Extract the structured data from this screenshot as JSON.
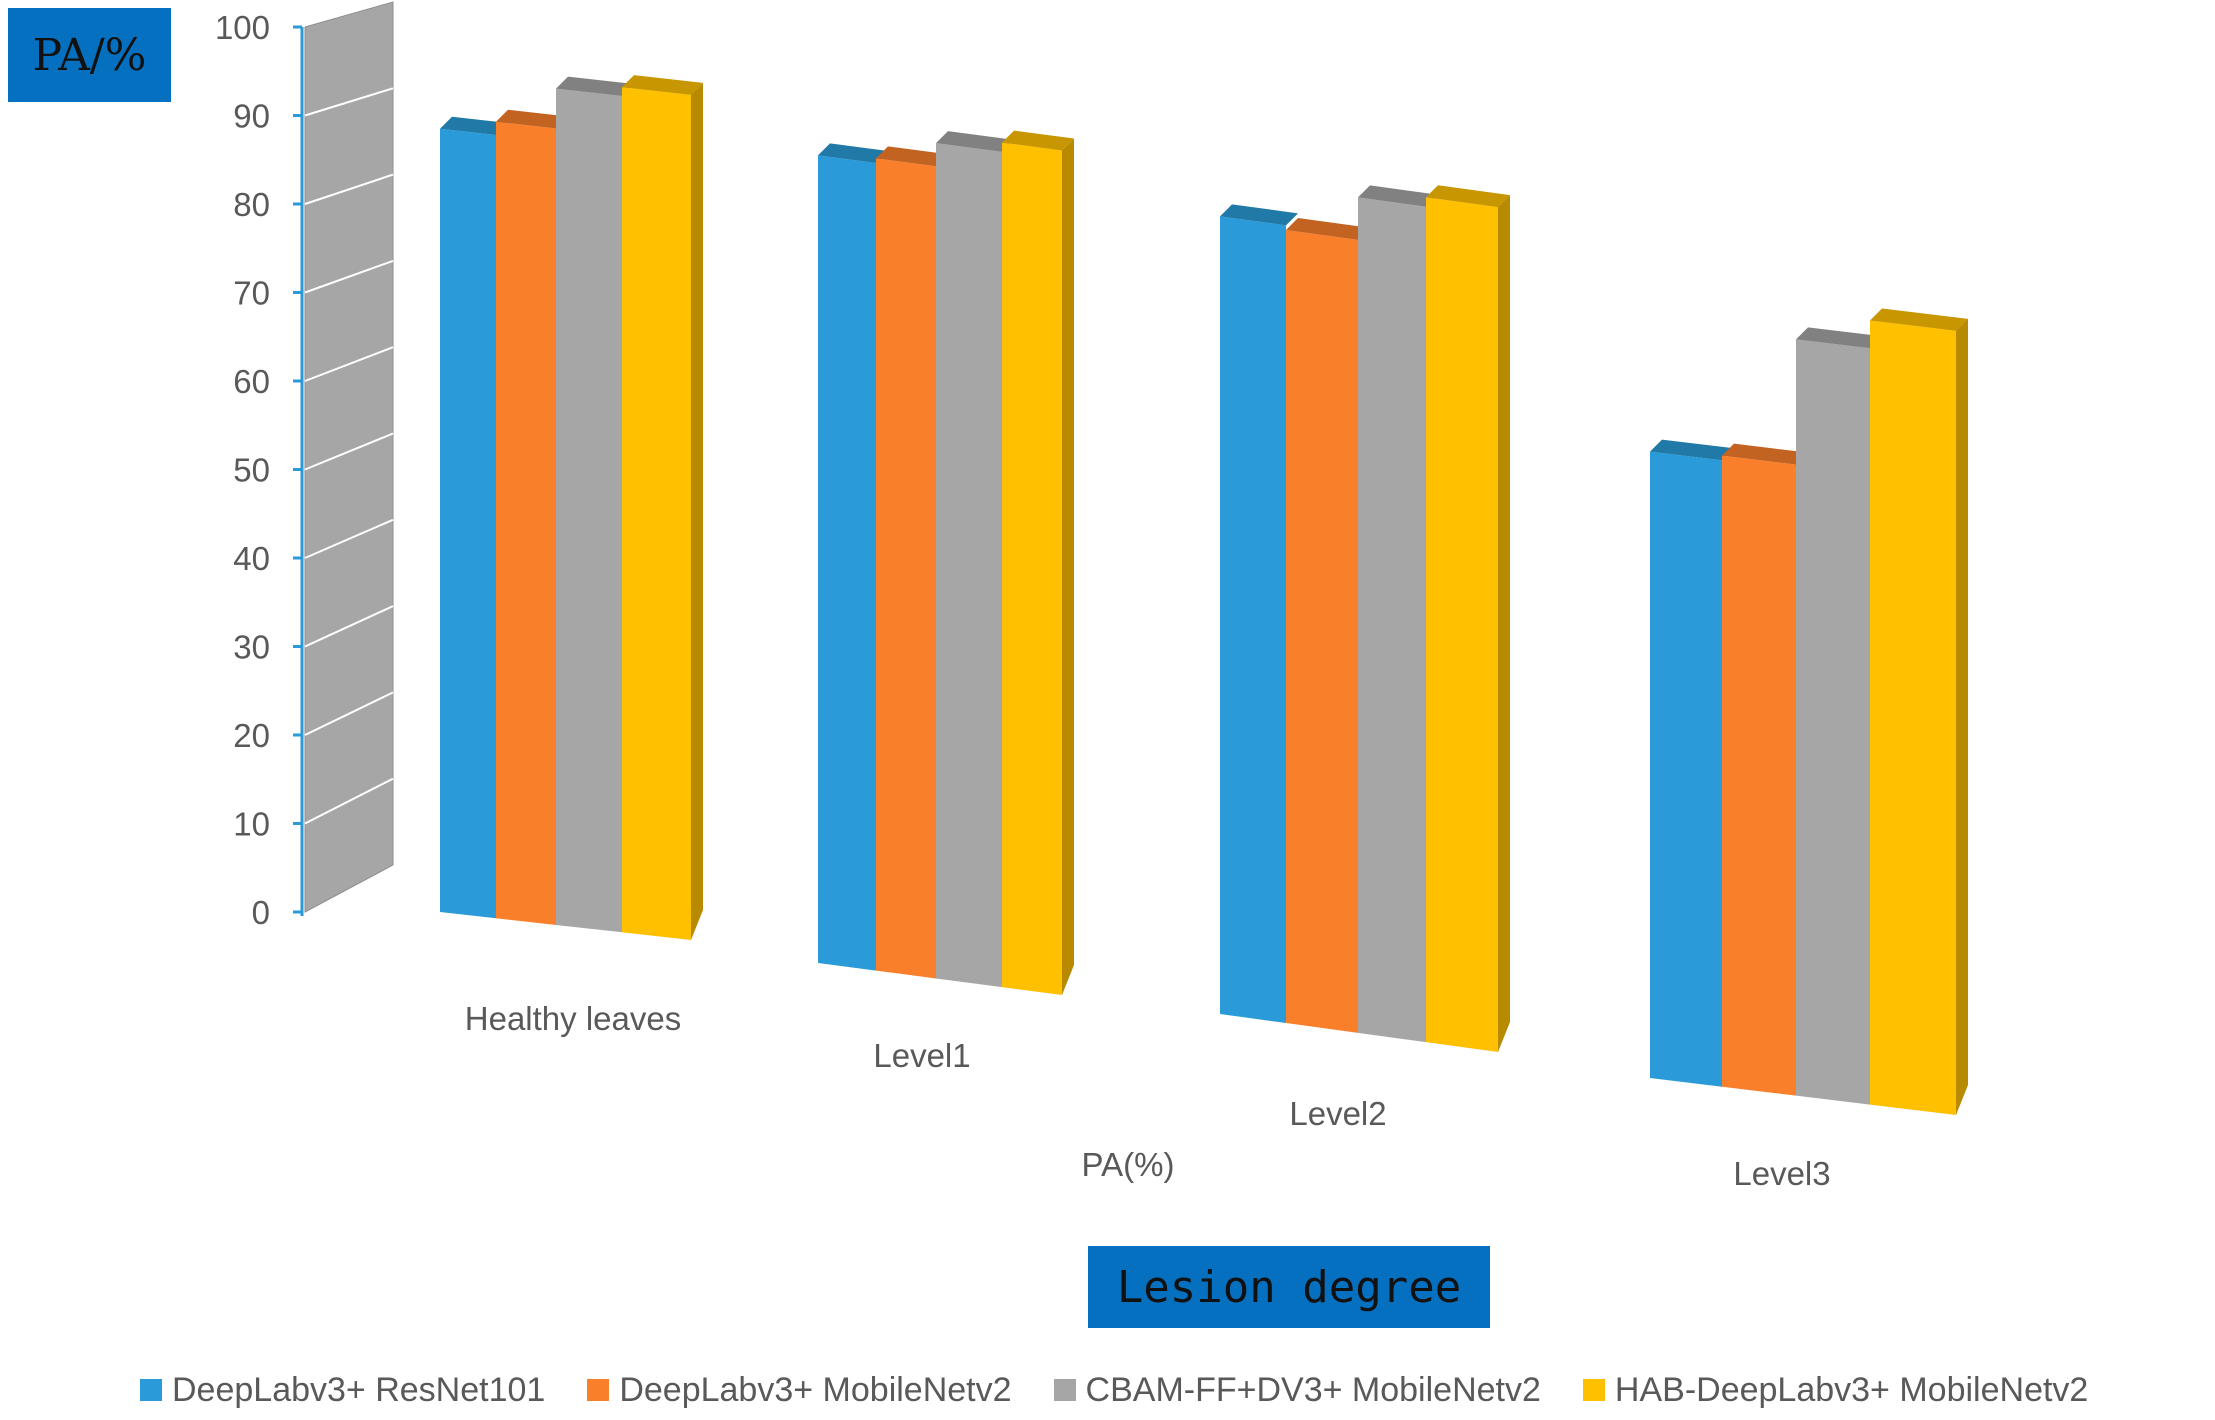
{
  "chart_data": {
    "type": "bar",
    "variant": "3d-clustered-column",
    "ylabel": "PA/%",
    "xlabel": "Lesion degree",
    "chart_title": "PA(%)",
    "categories": [
      "Healthy leaves",
      "Level1",
      "Level2",
      "Level3"
    ],
    "ylim": [
      0,
      100
    ],
    "yticks": [
      0,
      10,
      20,
      30,
      40,
      50,
      60,
      70,
      80,
      90,
      100
    ],
    "series": [
      {
        "name": "DeepLabv3+ ResNet101",
        "color": "#2a9bd8",
        "values": [
          88.5,
          87.5,
          84.5,
          67.5
        ]
      },
      {
        "name": "DeepLabv3+ MobileNetv2",
        "color": "#f97f2b",
        "values": [
          90.0,
          88.0,
          84.0,
          68.0
        ]
      },
      {
        "name": "CBAM-FF+DV3+ MobileNetv2",
        "color": "#a6a6a6",
        "values": [
          94.5,
          90.5,
          88.5,
          81.5
        ]
      },
      {
        "name": "HAB-DeepLabv3+ MobileNetv2",
        "color": "#ffc000",
        "values": [
          95.5,
          91.5,
          89.5,
          84.5
        ]
      }
    ]
  }
}
